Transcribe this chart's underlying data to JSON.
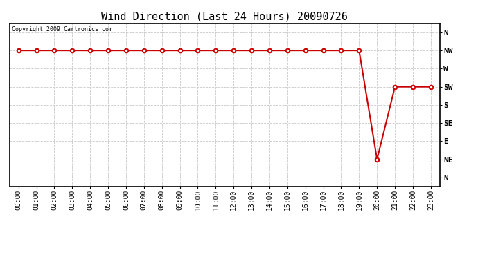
{
  "title": "Wind Direction (Last 24 Hours) 20090726",
  "copyright_text": "Copyright 2009 Cartronics.com",
  "line_color": "#cc0000",
  "background_color": "#ffffff",
  "grid_color": "#c8c8c8",
  "ytick_labels": [
    "N",
    "NE",
    "E",
    "SE",
    "S",
    "SW",
    "W",
    "NW",
    "N"
  ],
  "ytick_values": [
    0,
    1,
    2,
    3,
    4,
    5,
    6,
    7,
    8
  ],
  "xtick_labels": [
    "00:00",
    "01:00",
    "02:00",
    "03:00",
    "04:00",
    "05:00",
    "06:00",
    "07:00",
    "08:00",
    "09:00",
    "10:00",
    "11:00",
    "12:00",
    "13:00",
    "14:00",
    "15:00",
    "16:00",
    "17:00",
    "18:00",
    "19:00",
    "20:00",
    "21:00",
    "22:00",
    "23:00"
  ],
  "xtick_values": [
    0,
    1,
    2,
    3,
    4,
    5,
    6,
    7,
    8,
    9,
    10,
    11,
    12,
    13,
    14,
    15,
    16,
    17,
    18,
    19,
    20,
    21,
    22,
    23
  ],
  "x_data": [
    0,
    1,
    2,
    3,
    4,
    5,
    6,
    7,
    8,
    9,
    10,
    11,
    12,
    13,
    14,
    15,
    16,
    17,
    18,
    19,
    20,
    21,
    22,
    23
  ],
  "y_data": [
    7,
    7,
    7,
    7,
    7,
    7,
    7,
    7,
    7,
    7,
    7,
    7,
    7,
    7,
    7,
    7,
    7,
    7,
    7,
    7,
    1,
    5,
    5,
    5
  ],
  "xlim": [
    -0.5,
    23.5
  ],
  "ylim": [
    -0.5,
    8.5
  ],
  "marker_size": 4,
  "line_width": 1.5,
  "title_fontsize": 11,
  "tick_fontsize": 7,
  "copyright_fontsize": 6,
  "ytick_fontsize": 8
}
